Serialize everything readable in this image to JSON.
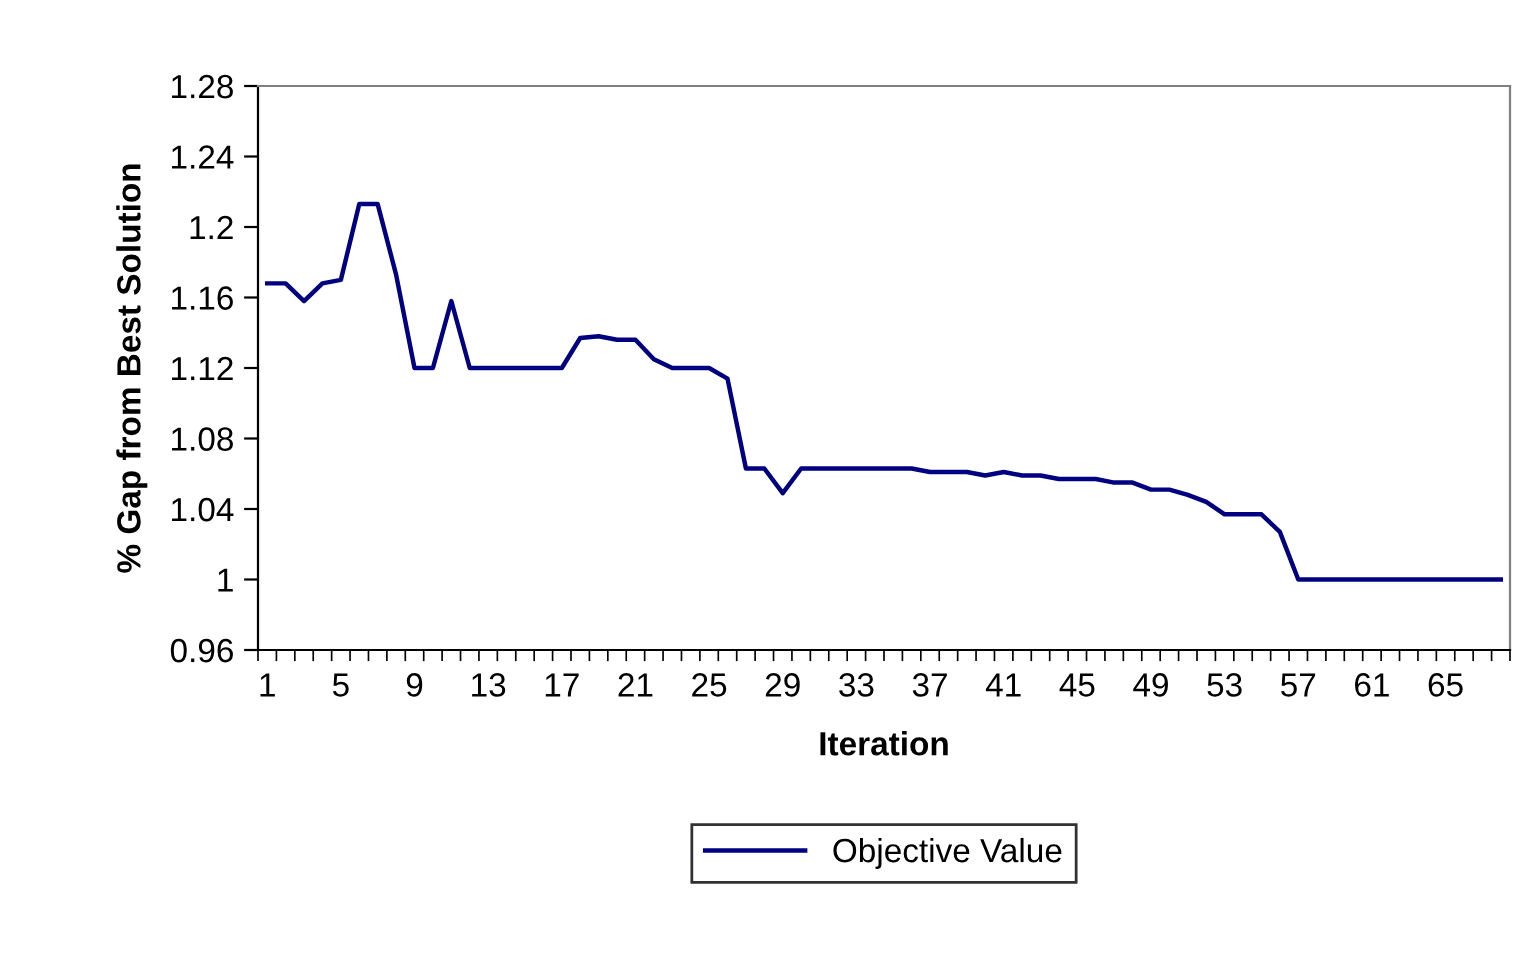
{
  "chart_data": {
    "type": "line",
    "xlabel": "Iteration",
    "ylabel": "% Gap from Best Solution",
    "categories": [
      "1",
      null,
      null,
      null,
      "5",
      null,
      null,
      null,
      "9",
      null,
      null,
      null,
      "13",
      null,
      null,
      null,
      "17",
      null,
      null,
      null,
      "21",
      null,
      null,
      null,
      "25",
      null,
      null,
      null,
      "29",
      null,
      null,
      null,
      "33",
      null,
      null,
      null,
      "37",
      null,
      null,
      null,
      "41",
      null,
      null,
      null,
      "45",
      null,
      null,
      null,
      "49",
      null,
      null,
      null,
      "53",
      null,
      null,
      null,
      "57",
      null,
      null,
      null,
      "61",
      null,
      null,
      null,
      "65",
      null,
      null,
      null
    ],
    "series": [
      {
        "name": "Objective Value",
        "color": "#000080",
        "values": [
          1.168,
          1.168,
          1.158,
          1.168,
          1.17,
          1.213,
          1.213,
          1.173,
          1.12,
          1.12,
          1.158,
          1.12,
          1.12,
          1.12,
          1.12,
          1.12,
          1.12,
          1.137,
          1.138,
          1.136,
          1.136,
          1.125,
          1.12,
          1.12,
          1.12,
          1.114,
          1.063,
          1.063,
          1.049,
          1.063,
          1.063,
          1.063,
          1.063,
          1.063,
          1.063,
          1.063,
          1.061,
          1.061,
          1.061,
          1.059,
          1.061,
          1.059,
          1.059,
          1.057,
          1.057,
          1.057,
          1.055,
          1.055,
          1.051,
          1.051,
          1.048,
          1.044,
          1.037,
          1.037,
          1.037,
          1.027,
          1.0,
          1.0,
          1.0,
          1.0,
          1.0,
          1.0,
          1.0,
          1.0,
          1.0,
          1.0,
          1.0,
          1.0
        ]
      }
    ],
    "ylim": [
      0.96,
      1.28
    ],
    "yticks": [
      0.96,
      1,
      1.04,
      1.08,
      1.12,
      1.16,
      1.2,
      1.24,
      1.28
    ],
    "grid": false,
    "legend": "bottom",
    "marker": "none",
    "line_style": "solid"
  }
}
